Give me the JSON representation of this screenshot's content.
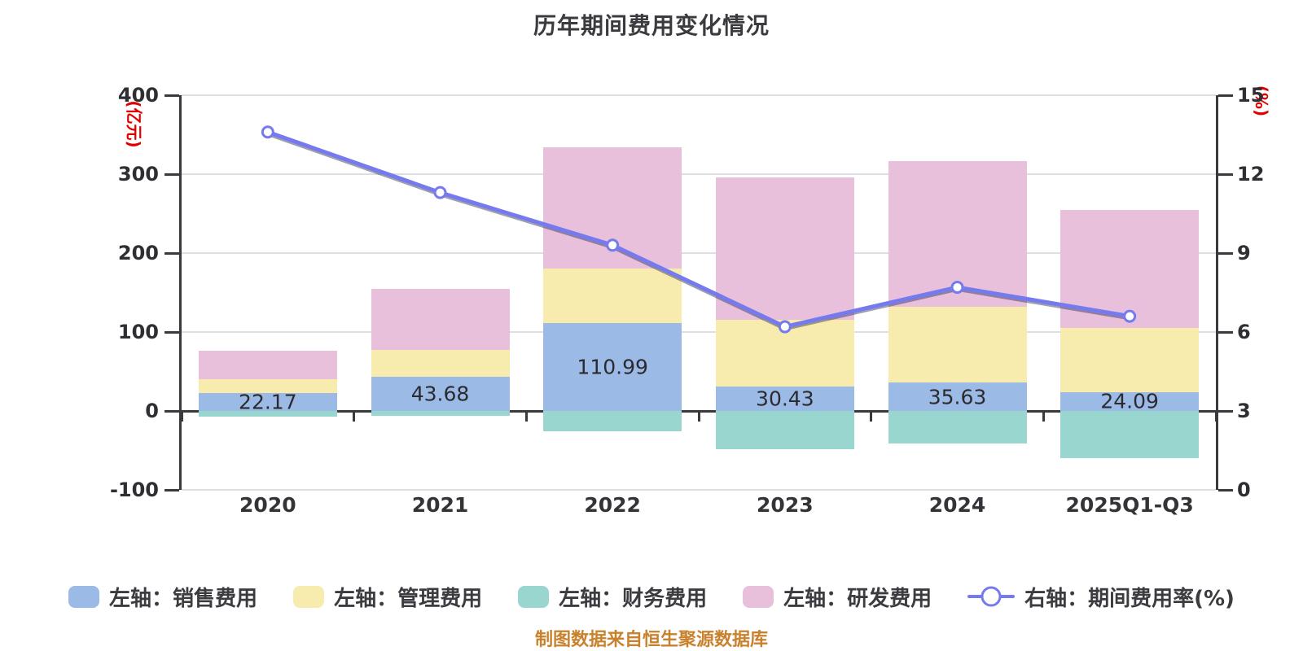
{
  "title": "历年期间费用变化情况",
  "footer": "制图数据来自恒生聚源数据库",
  "chart_data": {
    "type": "bar",
    "subtype": "stacked-bars-with-line",
    "categories": [
      "2020",
      "2021",
      "2022",
      "2023",
      "2024",
      "2025Q1-Q3"
    ],
    "series": [
      {
        "key": "sales",
        "name": "左轴：销售费用",
        "type": "bar",
        "axis": "left",
        "color": "#9cbae6",
        "values": [
          22.17,
          43.68,
          110.99,
          30.43,
          35.63,
          24.09
        ],
        "labels_shown": true
      },
      {
        "key": "admin",
        "name": "左轴：管理费用",
        "type": "bar",
        "axis": "left",
        "color": "#f7ecae",
        "values": [
          17.9,
          33.6,
          69.4,
          84.8,
          96.7,
          81.4
        ],
        "labels_shown": false
      },
      {
        "key": "finance",
        "name": "左轴：财务费用",
        "type": "bar",
        "axis": "left",
        "color": "#99d6d0",
        "values": [
          -6.9,
          -5.9,
          -25.8,
          -48.1,
          -41.2,
          -60.1
        ],
        "labels_shown": false
      },
      {
        "key": "rnd",
        "name": "左轴：研发费用",
        "type": "bar",
        "axis": "left",
        "color": "#e8c0dc",
        "values": [
          36.1,
          77.3,
          153.6,
          180.4,
          183.9,
          149.4
        ],
        "labels_shown": false
      },
      {
        "key": "rate",
        "name": "右轴：期间费用率(%)",
        "type": "line",
        "axis": "right",
        "color": "#757bee",
        "values": [
          13.6,
          11.3,
          9.3,
          6.2,
          7.7,
          6.6
        ],
        "labels_shown": false
      }
    ],
    "shown_bar_labels": [
      "22.17",
      "43.68",
      "110.99",
      "30.43",
      "35.63",
      "24.09"
    ],
    "y_left": {
      "unit": "(亿元)",
      "min": -100,
      "max": 400,
      "ticks": [
        400,
        300,
        200,
        100,
        0,
        -100
      ]
    },
    "y_right": {
      "unit": "(%)",
      "min": 0,
      "max": 15,
      "ticks": [
        15,
        12,
        9,
        6,
        3,
        0
      ]
    },
    "grid": true,
    "legend_position": "bottom"
  },
  "colors": {
    "background": "#ffffff",
    "title_text": "#3b3b3f",
    "axis": "#3a3a3e",
    "gridline": "#dfdfe3",
    "tick_text": "#2e2e33",
    "axis_unit_text": "#e10000",
    "bar_label_text": "#2b2b2f",
    "line_marker_fill": "#ffffff",
    "footer_text": "#c8822d"
  }
}
